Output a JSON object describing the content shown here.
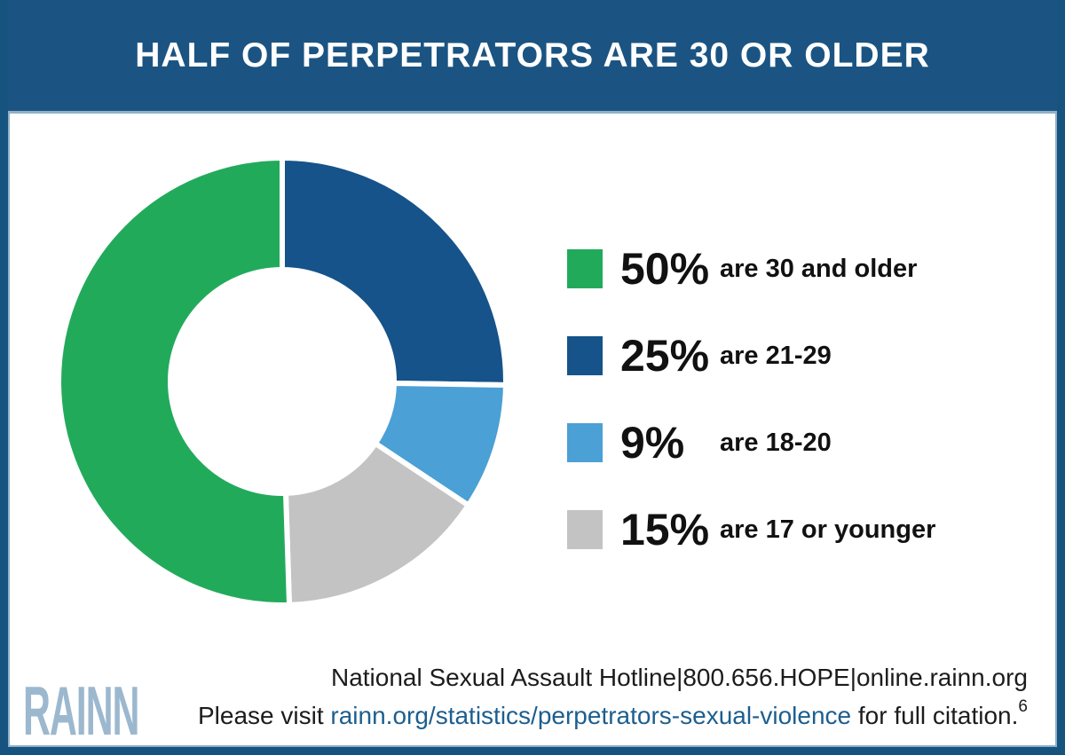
{
  "header": {
    "title": "HALF OF PERPETRATORS ARE 30 OR OLDER"
  },
  "chart_data": {
    "type": "pie",
    "subtype": "donut",
    "title": "HALF OF PERPETRATORS ARE 30 OR OLDER",
    "slices": [
      {
        "pct": "50%",
        "value": 50,
        "label": "are 30 and older",
        "color": "#22AA5B"
      },
      {
        "pct": "25%",
        "value": 25,
        "label": "are 21-29",
        "color": "#15538A"
      },
      {
        "pct": "9%",
        "value": 9,
        "label": "are 18-20",
        "color": "#4BA0D5"
      },
      {
        "pct": "15%",
        "value": 15,
        "label": "are 17 or younger",
        "color": "#C3C3C3"
      }
    ],
    "draw_order": [
      1,
      2,
      3,
      0
    ],
    "start_angle_deg": -90,
    "direction": "clockwise",
    "inner_radius_ratio": 0.5,
    "slice_gap_color": "#ffffff",
    "legend_position": "right"
  },
  "footer": {
    "hotline_line": "National Sexual Assault Hotline|800.656.HOPE|online.rainn.org",
    "citation_prefix": "Please visit ",
    "citation_link": "rainn.org/statistics/perpetrators-sexual-violence",
    "citation_suffix": " for full citation.",
    "citation_superscript": "6",
    "logo_text": "RAINN"
  },
  "colors": {
    "banner": "#1B5482",
    "frame_border": "#17537F",
    "inner_line": "#8FB0C9",
    "link": "#1D5E8F",
    "logo": "#9CB8CF"
  }
}
